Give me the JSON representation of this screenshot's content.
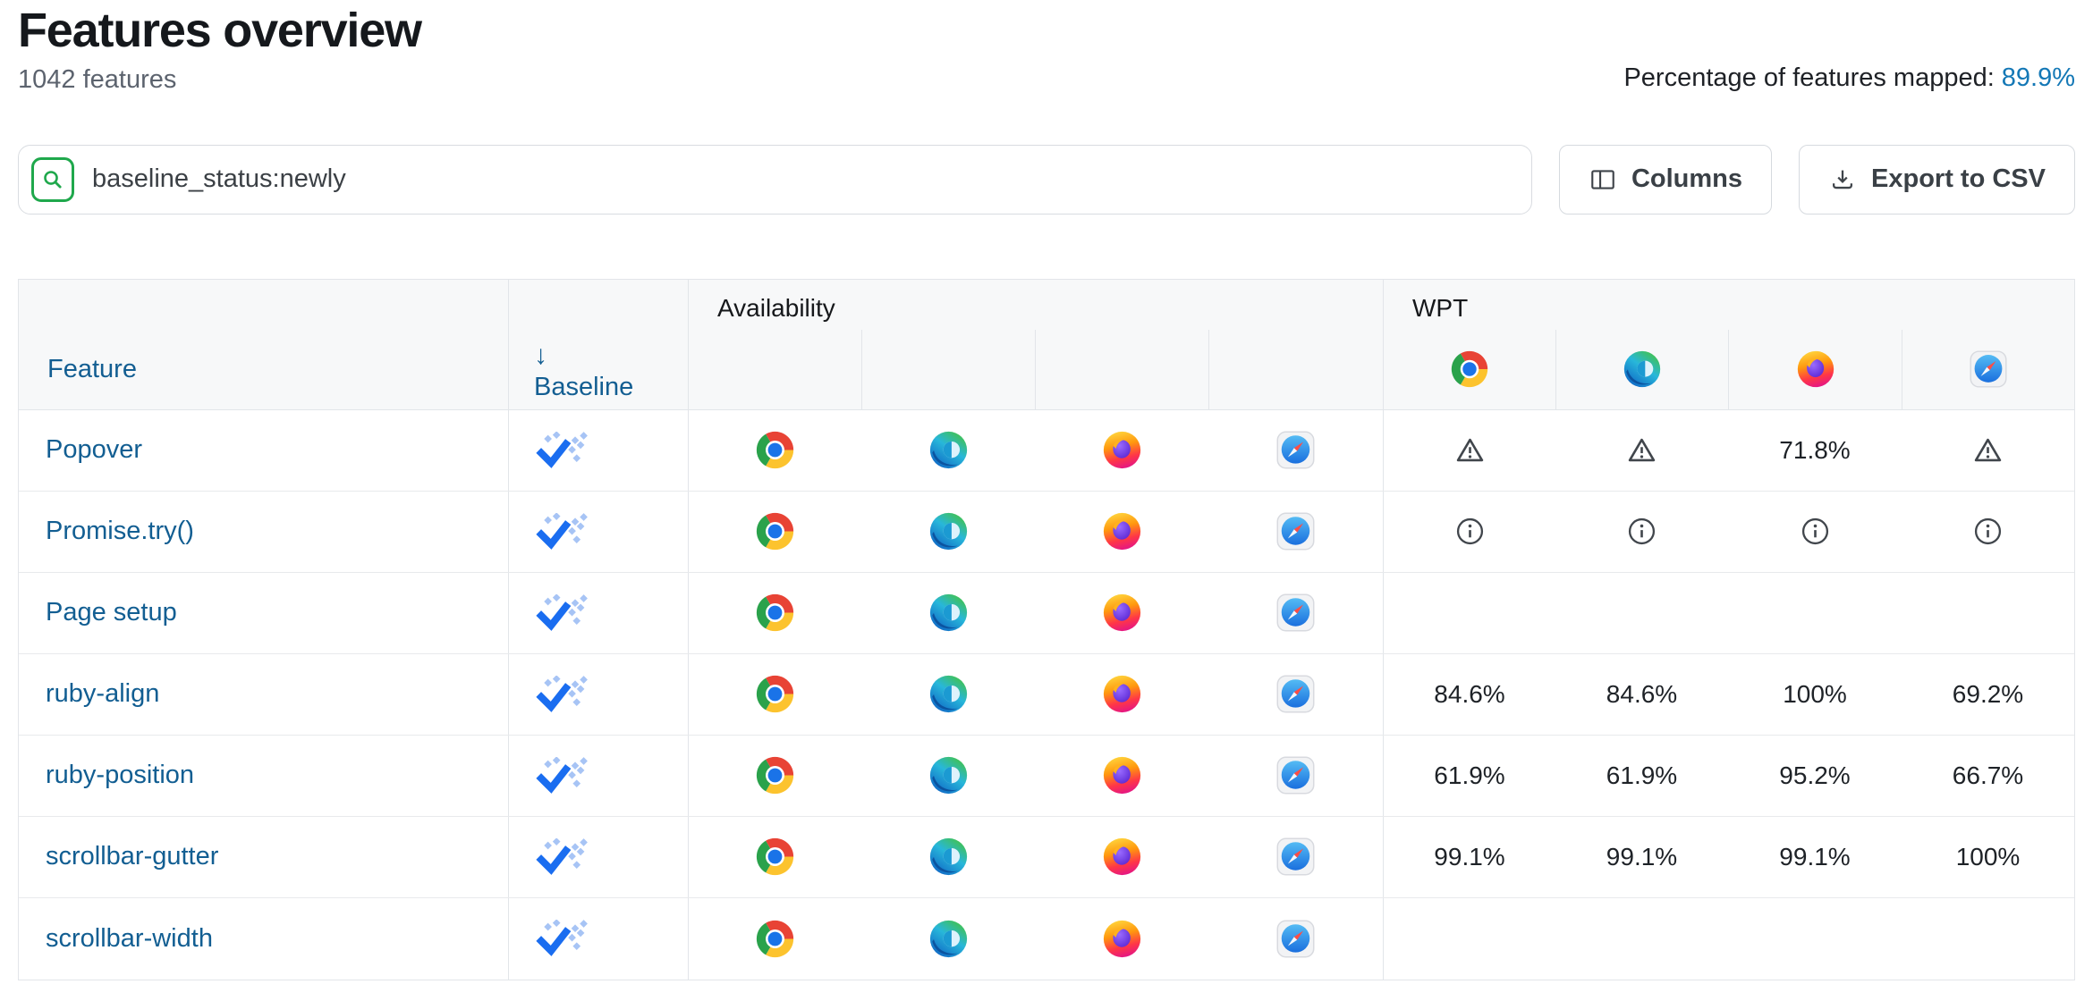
{
  "header": {
    "title": "Features overview",
    "subtitle": "1042 features",
    "mapped_label": "Percentage of features mapped:",
    "mapped_value": "89.9%"
  },
  "toolbar": {
    "search_value": "baseline_status:newly",
    "columns_label": "Columns",
    "export_label": "Export to CSV"
  },
  "table": {
    "feature_header": "Feature",
    "baseline_header": "Baseline",
    "sort_arrow": "↓",
    "availability_header": "Availability",
    "wpt_header": "WPT",
    "browsers": [
      "chrome",
      "edge",
      "firefox",
      "safari"
    ],
    "baseline_status_legend": "newly",
    "rows": [
      {
        "feature": "Popover",
        "baseline": "newly",
        "availability": [
          "chrome",
          "edge",
          "firefox",
          "safari"
        ],
        "wpt": [
          {
            "kind": "warning"
          },
          {
            "kind": "warning"
          },
          {
            "kind": "percent",
            "value": "71.8%"
          },
          {
            "kind": "warning"
          }
        ]
      },
      {
        "feature": "Promise.try()",
        "baseline": "newly",
        "availability": [
          "chrome",
          "edge",
          "firefox",
          "safari"
        ],
        "wpt": [
          {
            "kind": "info"
          },
          {
            "kind": "info"
          },
          {
            "kind": "info"
          },
          {
            "kind": "info"
          }
        ]
      },
      {
        "feature": "Page setup",
        "baseline": "newly",
        "availability": [
          "chrome",
          "edge",
          "firefox",
          "safari"
        ],
        "wpt": [
          {
            "kind": "none"
          },
          {
            "kind": "none"
          },
          {
            "kind": "none"
          },
          {
            "kind": "none"
          }
        ]
      },
      {
        "feature": "ruby-align",
        "baseline": "newly",
        "availability": [
          "chrome",
          "edge",
          "firefox",
          "safari"
        ],
        "wpt": [
          {
            "kind": "percent",
            "value": "84.6%"
          },
          {
            "kind": "percent",
            "value": "84.6%"
          },
          {
            "kind": "percent",
            "value": "100%"
          },
          {
            "kind": "percent",
            "value": "69.2%"
          }
        ]
      },
      {
        "feature": "ruby-position",
        "baseline": "newly",
        "availability": [
          "chrome",
          "edge",
          "firefox",
          "safari"
        ],
        "wpt": [
          {
            "kind": "percent",
            "value": "61.9%"
          },
          {
            "kind": "percent",
            "value": "61.9%"
          },
          {
            "kind": "percent",
            "value": "95.2%"
          },
          {
            "kind": "percent",
            "value": "66.7%"
          }
        ]
      },
      {
        "feature": "scrollbar-gutter",
        "baseline": "newly",
        "availability": [
          "chrome",
          "edge",
          "firefox",
          "safari"
        ],
        "wpt": [
          {
            "kind": "percent",
            "value": "99.1%"
          },
          {
            "kind": "percent",
            "value": "99.1%"
          },
          {
            "kind": "percent",
            "value": "99.1%"
          },
          {
            "kind": "percent",
            "value": "100%"
          }
        ]
      },
      {
        "feature": "scrollbar-width",
        "baseline": "newly",
        "availability": [
          "chrome",
          "edge",
          "firefox",
          "safari"
        ],
        "wpt": [
          {
            "kind": "none"
          },
          {
            "kind": "none"
          },
          {
            "kind": "none"
          },
          {
            "kind": "none"
          }
        ]
      }
    ]
  },
  "colors": {
    "link_blue": "#125e92",
    "mapped_link_blue": "#1478b6",
    "baseline_check_blue": "#1a6df0",
    "baseline_dot_blue": "#a7c4f5",
    "search_green": "#1fa84c",
    "header_bg": "#f7f8f9"
  }
}
